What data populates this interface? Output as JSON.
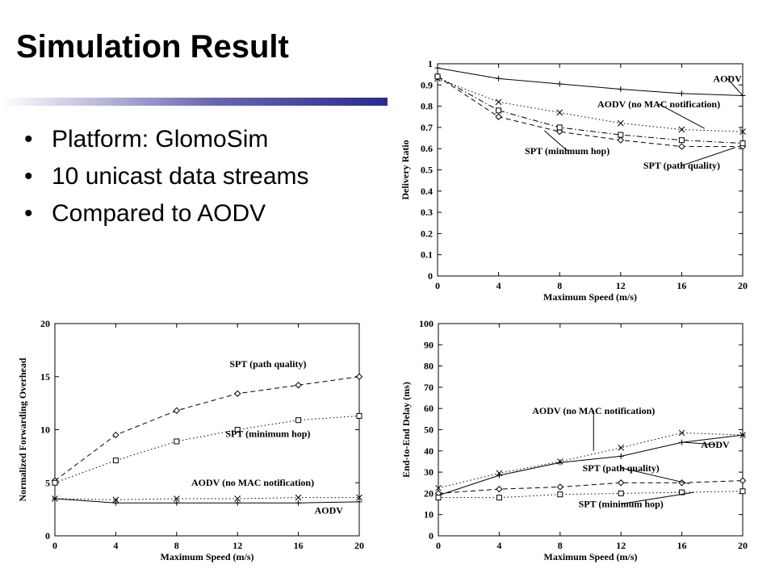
{
  "slide": {
    "title": "Simulation Result",
    "bullets": [
      "Platform: GlomoSim",
      "10 unicast data streams",
      "Compared to AODV"
    ]
  },
  "chart_data": [
    {
      "id": "delivery",
      "type": "line",
      "xlabel": "Maximum Speed (m/s)",
      "ylabel": "Delivery Ratio",
      "xlim": [
        0,
        20
      ],
      "ylim": [
        0,
        1
      ],
      "xticks": [
        0,
        4,
        8,
        12,
        16,
        20
      ],
      "yticks": [
        0,
        0.1,
        0.2,
        0.3,
        0.4,
        0.5,
        0.6,
        0.7,
        0.8,
        0.9,
        1
      ],
      "ytick_labels": [
        "0",
        "0.1",
        "0.2",
        "0.3",
        "0.4",
        "0.5",
        "0.6",
        "0.7",
        "0.8",
        "0.9",
        "1"
      ],
      "x": [
        0,
        4,
        8,
        12,
        16,
        20
      ],
      "series": [
        {
          "name": "AODV",
          "style": "solid",
          "marker": "plus",
          "values": [
            0.98,
            0.93,
            0.905,
            0.88,
            0.86,
            0.85
          ]
        },
        {
          "name": "AODV (no MAC notification)",
          "style": "dotted",
          "marker": "x",
          "values": [
            0.93,
            0.82,
            0.77,
            0.72,
            0.69,
            0.68
          ]
        },
        {
          "name": "SPT (minimum hop)",
          "style": "dashed",
          "marker": "diamond",
          "values": [
            0.94,
            0.75,
            0.68,
            0.64,
            0.61,
            0.61
          ]
        },
        {
          "name": "SPT (path quality)",
          "style": "dashdot",
          "marker": "square",
          "values": [
            0.94,
            0.78,
            0.7,
            0.665,
            0.64,
            0.625
          ]
        }
      ],
      "annotations": [
        {
          "text": "AODV",
          "series": 0,
          "at": [
            20,
            0.85
          ],
          "label": [
            19.0,
            0.915
          ]
        },
        {
          "text": "AODV (no MAC notification)",
          "series": 1,
          "at": [
            17.5,
            0.695
          ],
          "label": [
            14.5,
            0.795
          ]
        },
        {
          "text": "SPT (minimum hop)",
          "series": 2,
          "at": [
            7,
            0.685
          ],
          "label": [
            8.5,
            0.575
          ]
        },
        {
          "text": "SPT (path quality)",
          "series": 3,
          "at": [
            19.5,
            0.605
          ],
          "label": [
            16.0,
            0.505
          ]
        }
      ]
    },
    {
      "id": "overhead",
      "type": "line",
      "xlabel": "Maximum Speed (m/s)",
      "ylabel": "Normalized Forwarding Overhead",
      "xlim": [
        0,
        20
      ],
      "ylim": [
        0,
        20
      ],
      "xticks": [
        0,
        4,
        8,
        12,
        16,
        20
      ],
      "yticks": [
        0,
        5,
        10,
        15,
        20
      ],
      "ytick_labels": [
        "0",
        "5",
        "10",
        "15",
        "20"
      ],
      "x": [
        0,
        4,
        8,
        12,
        16,
        20
      ],
      "series": [
        {
          "name": "SPT (path quality)",
          "style": "dashed",
          "marker": "diamond",
          "values": [
            5.2,
            9.5,
            11.8,
            13.4,
            14.2,
            15.0
          ]
        },
        {
          "name": "SPT (minimum hop)",
          "style": "dotted",
          "marker": "square",
          "values": [
            5.0,
            7.1,
            8.9,
            10.0,
            10.9,
            11.3
          ]
        },
        {
          "name": "AODV (no MAC notification)",
          "style": "dotted",
          "marker": "x",
          "values": [
            3.5,
            3.4,
            3.5,
            3.5,
            3.6,
            3.6
          ]
        },
        {
          "name": "AODV",
          "style": "solid",
          "marker": "plus",
          "values": [
            3.5,
            3.1,
            3.1,
            3.1,
            3.1,
            3.2
          ]
        }
      ],
      "annotations": [
        {
          "text": "SPT (path quality)",
          "series": 0,
          "label": [
            14.0,
            15.9
          ]
        },
        {
          "text": "SPT (minimum hop)",
          "series": 1,
          "label": [
            14.0,
            9.3
          ]
        },
        {
          "text": "AODV (no MAC notification)",
          "series": 2,
          "label": [
            13.0,
            4.7
          ]
        },
        {
          "text": "AODV",
          "series": 3,
          "label": [
            18.0,
            2.1
          ]
        }
      ]
    },
    {
      "id": "delay",
      "type": "line",
      "xlabel": "Maximum Speed (m/s)",
      "ylabel": "End-to-End Delay (ms)",
      "xlim": [
        0,
        20
      ],
      "ylim": [
        0,
        100
      ],
      "xticks": [
        0,
        4,
        8,
        12,
        16,
        20
      ],
      "yticks": [
        0,
        10,
        20,
        30,
        40,
        50,
        60,
        70,
        80,
        90,
        100
      ],
      "ytick_labels": [
        "0",
        "10",
        "20",
        "30",
        "40",
        "50",
        "60",
        "70",
        "80",
        "90",
        "100"
      ],
      "x": [
        0,
        4,
        8,
        12,
        16,
        20
      ],
      "series": [
        {
          "name": "AODV (no MAC notification)",
          "style": "dotted",
          "marker": "x",
          "values": [
            22.5,
            29.5,
            35.0,
            41.5,
            48.5,
            47.5
          ]
        },
        {
          "name": "AODV",
          "style": "solid",
          "marker": "plus",
          "values": [
            19.0,
            28.5,
            34.5,
            37.5,
            44.0,
            47.5
          ]
        },
        {
          "name": "SPT (path quality)",
          "style": "dashed",
          "marker": "diamond",
          "values": [
            20.0,
            22.0,
            23.0,
            25.0,
            25.0,
            26.0
          ]
        },
        {
          "name": "SPT (minimum hop)",
          "style": "dotted",
          "marker": "square",
          "values": [
            18.0,
            18.0,
            19.5,
            20.0,
            20.5,
            21.0
          ]
        }
      ],
      "annotations": [
        {
          "text": "AODV (no MAC notification)",
          "series": 0,
          "at": [
            10.2,
            40.0
          ],
          "label": [
            10.2,
            57.5
          ]
        },
        {
          "text": "AODV",
          "series": 1,
          "at": [
            16.2,
            44.0
          ],
          "label": [
            18.2,
            41.5
          ]
        },
        {
          "text": "SPT (path quality)",
          "series": 2,
          "at": [
            16.5,
            24.5
          ],
          "label": [
            12.0,
            30.5
          ]
        },
        {
          "text": "SPT (minimum hop)",
          "series": 3,
          "at": [
            16.8,
            20.5
          ],
          "label": [
            12.0,
            13.5
          ]
        }
      ]
    }
  ]
}
